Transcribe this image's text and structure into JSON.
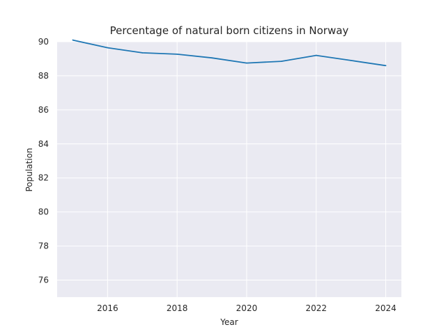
{
  "chart_data": {
    "type": "line",
    "title": "Percentage of natural born citizens in Norway",
    "xlabel": "Year",
    "ylabel": "Population",
    "xlim": [
      2014.55,
      2024.45
    ],
    "ylim": [
      75.0,
      90.0
    ],
    "x_ticks": [
      "2016",
      "2018",
      "2020",
      "2022",
      "2024"
    ],
    "y_ticks": [
      "76",
      "78",
      "80",
      "82",
      "84",
      "86",
      "88",
      "90"
    ],
    "grid": true,
    "series": [
      {
        "x": [
          2015,
          2016,
          2017,
          2018,
          2019,
          2020,
          2021,
          2022,
          2023,
          2024
        ],
        "values": [
          90.1,
          89.65,
          89.35,
          89.27,
          89.05,
          88.75,
          88.85,
          89.2,
          88.9,
          88.6
        ],
        "color": "#1f77b4"
      }
    ]
  }
}
